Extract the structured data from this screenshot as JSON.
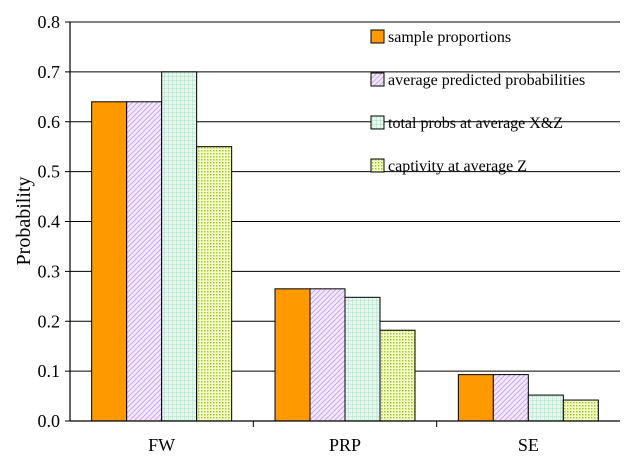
{
  "chart_data": {
    "type": "bar",
    "title": "",
    "xlabel": "",
    "ylabel": "Probability",
    "categories": [
      "FW",
      "PRP",
      "SE"
    ],
    "ylim": [
      0,
      0.8
    ],
    "yticks": [
      "0.0",
      "0.1",
      "0.2",
      "0.3",
      "0.4",
      "0.5",
      "0.6",
      "0.7",
      "0.8"
    ],
    "grid": true,
    "legend_position": "top-right",
    "series": [
      {
        "name": "sample proportions",
        "values": [
          0.64,
          0.265,
          0.093
        ],
        "color": "#ff9900",
        "pattern": "solid"
      },
      {
        "name": "average predicted probabilities",
        "values": [
          0.64,
          0.265,
          0.093
        ],
        "color": "#e8d8f8",
        "pattern": "diagonal"
      },
      {
        "name": "total probs at average X&Z",
        "values": [
          0.7,
          0.248,
          0.052
        ],
        "color": "#d4f0e4",
        "pattern": "grid"
      },
      {
        "name": "captivity at average Z",
        "values": [
          0.55,
          0.182,
          0.042
        ],
        "color": "#e6f5a0",
        "pattern": "dots"
      }
    ]
  }
}
